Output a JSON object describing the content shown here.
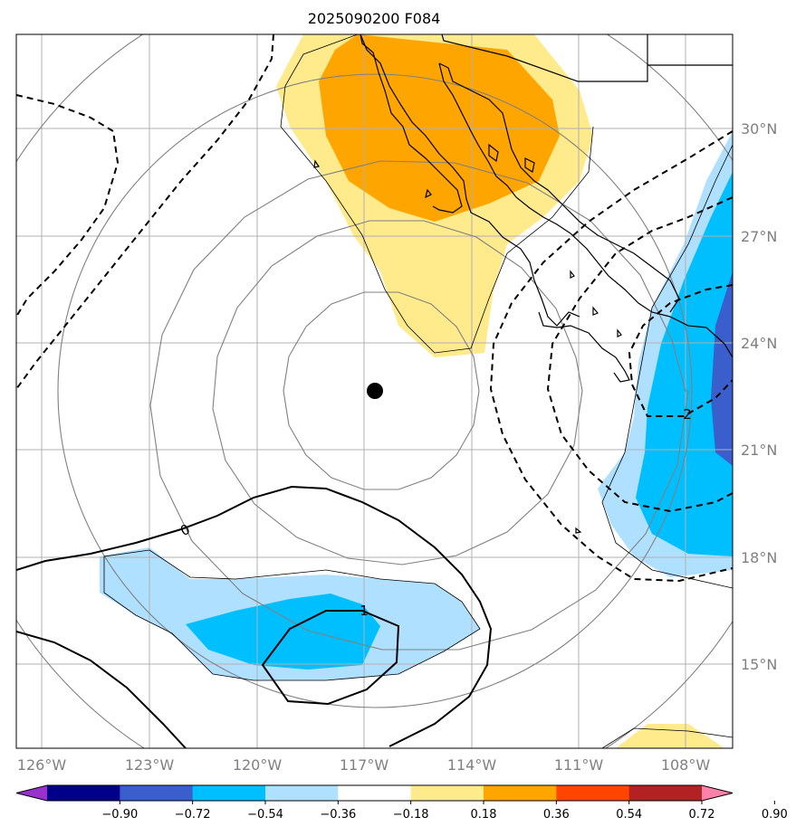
{
  "title": "2025090200 F084",
  "colors": {
    "pos1": "#ffea8c",
    "pos2": "#ffa500",
    "neg1": "#b0e0ff",
    "neg2": "#00bfff",
    "neg3": "#3a5fcd",
    "grid": "#b0b0b0",
    "ring": "#808080"
  },
  "lon_labels": [
    "126°W",
    "123°W",
    "120°W",
    "117°W",
    "114°W",
    "111°W",
    "108°W"
  ],
  "lat_labels": [
    "30°N",
    "27°N",
    "24°N",
    "21°N",
    "18°N",
    "15°N"
  ],
  "contour_labels": [
    "0",
    "1",
    "2"
  ],
  "colorbar": {
    "ticks": [
      "−0.90",
      "−0.72",
      "−0.54",
      "−0.36",
      "−0.18",
      "0.18",
      "0.36",
      "0.54",
      "0.72",
      "0.90"
    ],
    "colors": [
      "#9932cc",
      "#00008b",
      "#3a5fcd",
      "#00bfff",
      "#b0e0ff",
      "#ffffff",
      "#ffea8c",
      "#ffa500",
      "#ff4500",
      "#b22222",
      "#ff82ab"
    ]
  },
  "center_marker": "storm-center"
}
